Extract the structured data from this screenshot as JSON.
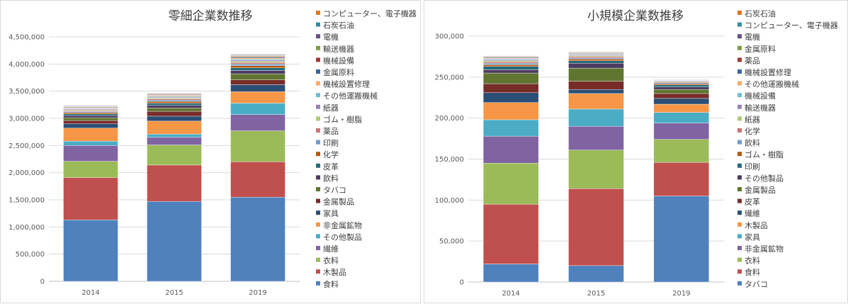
{
  "chart_data": [
    {
      "type": "bar",
      "stacked": true,
      "title": "零細企業数推移",
      "categories": [
        "2014",
        "2015",
        "2019"
      ],
      "ylim": [
        0,
        4500000
      ],
      "yticks": [
        "0",
        "500,000",
        "1,000,000",
        "1,500,000",
        "2,000,000",
        "2,500,000",
        "3,000,000",
        "3,500,000",
        "4,000,000",
        "4,500,000"
      ],
      "grid": true,
      "legend_position": "right",
      "series": [
        {
          "name": "食料",
          "color": "#4f81bd",
          "values": [
            1130000,
            1470000,
            1550000
          ]
        },
        {
          "name": "木製品",
          "color": "#c0504d",
          "values": [
            780000,
            670000,
            650000
          ]
        },
        {
          "name": "衣料",
          "color": "#9bbb59",
          "values": [
            300000,
            370000,
            570000
          ]
        },
        {
          "name": "繊維",
          "color": "#8064a2",
          "values": [
            290000,
            140000,
            300000
          ]
        },
        {
          "name": "その他製品",
          "color": "#4bacc6",
          "values": [
            80000,
            60000,
            210000
          ]
        },
        {
          "name": "非金属鉱物",
          "color": "#f79646",
          "values": [
            240000,
            240000,
            210000
          ]
        },
        {
          "name": "家具",
          "color": "#2c4d75",
          "values": [
            80000,
            90000,
            130000
          ]
        },
        {
          "name": "金属製品",
          "color": "#772c2a",
          "values": [
            60000,
            90000,
            90000
          ]
        },
        {
          "name": "タバコ",
          "color": "#5f7530",
          "values": [
            50000,
            60000,
            110000
          ]
        },
        {
          "name": "飲料",
          "color": "#4d3b62",
          "values": [
            40000,
            50000,
            60000
          ]
        },
        {
          "name": "皮革",
          "color": "#276a7c",
          "values": [
            30000,
            40000,
            50000
          ]
        },
        {
          "name": "化学",
          "color": "#b65708",
          "values": [
            25000,
            30000,
            40000
          ]
        },
        {
          "name": "印刷",
          "color": "#729aca",
          "values": [
            20000,
            25000,
            30000
          ]
        },
        {
          "name": "薬品",
          "color": "#cd7371",
          "values": [
            15000,
            20000,
            25000
          ]
        },
        {
          "name": "ゴム・樹脂",
          "color": "#afc97a",
          "values": [
            15000,
            20000,
            25000
          ]
        },
        {
          "name": "紙器",
          "color": "#9983b5",
          "values": [
            15000,
            15000,
            20000
          ]
        },
        {
          "name": "その他運搬機械",
          "color": "#6fbdd1",
          "values": [
            10000,
            15000,
            20000
          ]
        },
        {
          "name": "機械設置修理",
          "color": "#f9ab6b",
          "values": [
            10000,
            15000,
            20000
          ]
        },
        {
          "name": "金属原料",
          "color": "#3a679c",
          "values": [
            10000,
            10000,
            15000
          ]
        },
        {
          "name": "機械設備",
          "color": "#9f3b38",
          "values": [
            10000,
            10000,
            15000
          ]
        },
        {
          "name": "輸送機器",
          "color": "#7e9c40",
          "values": [
            10000,
            10000,
            10000
          ]
        },
        {
          "name": "電機",
          "color": "#664f83",
          "values": [
            10000,
            10000,
            10000
          ]
        },
        {
          "name": "石炭石油",
          "color": "#338ea5",
          "values": [
            5000,
            5000,
            10000
          ]
        },
        {
          "name": "コンピューター、電子機器",
          "color": "#e0791c",
          "values": [
            5000,
            5000,
            10000
          ]
        }
      ]
    },
    {
      "type": "bar",
      "stacked": true,
      "title": "小規模企業数推移",
      "categories": [
        "2014",
        "2015",
        "2019"
      ],
      "ylim": [
        0,
        300000
      ],
      "yticks": [
        "0",
        "50,000",
        "100,000",
        "150,000",
        "200,000",
        "250,000",
        "300,000"
      ],
      "grid": true,
      "legend_position": "right",
      "series": [
        {
          "name": "タバコ",
          "color": "#4f81bd",
          "values": [
            22000,
            20000,
            105000
          ]
        },
        {
          "name": "食料",
          "color": "#c0504d",
          "values": [
            73000,
            94000,
            41000
          ]
        },
        {
          "name": "衣料",
          "color": "#9bbb59",
          "values": [
            50000,
            47000,
            28000
          ]
        },
        {
          "name": "非金属鉱物",
          "color": "#8064a2",
          "values": [
            33000,
            29000,
            20000
          ]
        },
        {
          "name": "家具",
          "color": "#4bacc6",
          "values": [
            20000,
            21000,
            13000
          ]
        },
        {
          "name": "木製品",
          "color": "#f79646",
          "values": [
            21000,
            19000,
            10000
          ]
        },
        {
          "name": "繊維",
          "color": "#2c4d75",
          "values": [
            12000,
            5000,
            7000
          ]
        },
        {
          "name": "皮革",
          "color": "#772c2a",
          "values": [
            11000,
            10000,
            6000
          ]
        },
        {
          "name": "金属製品",
          "color": "#5f7530",
          "values": [
            13000,
            16000,
            5000
          ]
        },
        {
          "name": "その他製品",
          "color": "#4d3b62",
          "values": [
            4000,
            6000,
            3000
          ]
        },
        {
          "name": "印刷",
          "color": "#276a7c",
          "values": [
            4000,
            3000,
            2500
          ]
        },
        {
          "name": "ゴム・樹脂",
          "color": "#b65708",
          "values": [
            2000,
            2000,
            1500
          ]
        },
        {
          "name": "飲料",
          "color": "#729aca",
          "values": [
            2000,
            1500,
            1200
          ]
        },
        {
          "name": "化学",
          "color": "#cd7371",
          "values": [
            1500,
            1500,
            1000
          ]
        },
        {
          "name": "紙器",
          "color": "#afc97a",
          "values": [
            1500,
            1200,
            800
          ]
        },
        {
          "name": "輸送機器",
          "color": "#9983b5",
          "values": [
            1200,
            1000,
            700
          ]
        },
        {
          "name": "機械設備",
          "color": "#6fbdd1",
          "values": [
            1000,
            900,
            600
          ]
        },
        {
          "name": "その他運搬機械",
          "color": "#f9ab6b",
          "values": [
            900,
            800,
            500
          ]
        },
        {
          "name": "機械設置修理",
          "color": "#3a679c",
          "values": [
            800,
            700,
            400
          ]
        },
        {
          "name": "薬品",
          "color": "#9f3b38",
          "values": [
            700,
            600,
            300
          ]
        },
        {
          "name": "金属原料",
          "color": "#7e9c40",
          "values": [
            600,
            500,
            300
          ]
        },
        {
          "name": "電機",
          "color": "#664f83",
          "values": [
            500,
            400,
            200
          ]
        },
        {
          "name": "コンピューター、電子機器",
          "color": "#338ea5",
          "values": [
            400,
            300,
            200
          ]
        },
        {
          "name": "石炭石油",
          "color": "#e0791c",
          "values": [
            300,
            200,
            100
          ]
        }
      ]
    }
  ]
}
